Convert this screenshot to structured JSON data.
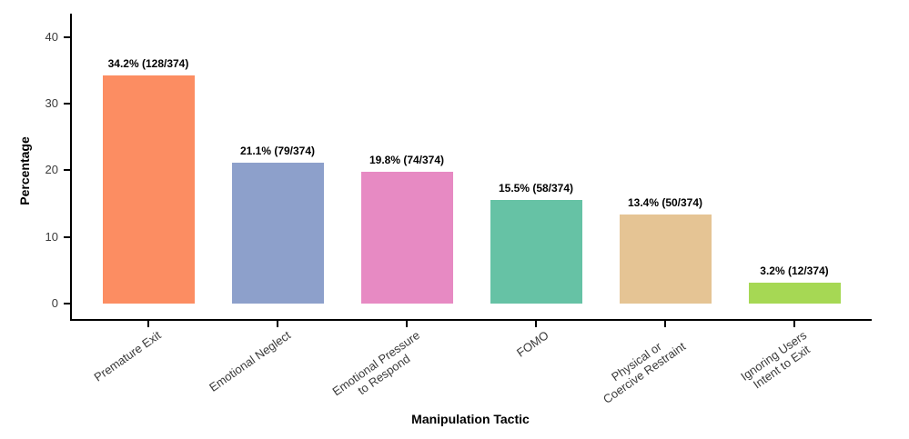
{
  "chart_data": {
    "type": "bar",
    "title": "",
    "xlabel": "Manipulation Tactic",
    "ylabel": "Percentage",
    "categories": [
      "Premature Exit",
      "Emotional Neglect",
      "Emotional Pressure\nto Respond",
      "FOMO",
      "Physical or\nCoercive Restraint",
      "Ignoring Users\nIntent to Exit"
    ],
    "values": [
      34.2,
      21.1,
      19.8,
      15.5,
      13.4,
      3.2
    ],
    "counts": [
      128,
      79,
      74,
      58,
      50,
      12
    ],
    "total": 374,
    "bar_labels": [
      "34.2% (128/374)",
      "21.1% (79/374)",
      "19.8% (74/374)",
      "15.5% (58/374)",
      "13.4% (50/374)",
      "3.2% (12/374)"
    ],
    "bar_colors": [
      "#FC8D62",
      "#8DA0CB",
      "#E78AC3",
      "#66C2A5",
      "#E5C494",
      "#A6D854"
    ],
    "y_ticks": [
      0,
      10,
      20,
      30,
      40
    ],
    "ylim": [
      0,
      43.6
    ],
    "grid": false,
    "legend_position": "none",
    "axis_color": "#000000",
    "tick_label_color": "#3a3a3a",
    "value_label_color": "#000000"
  }
}
